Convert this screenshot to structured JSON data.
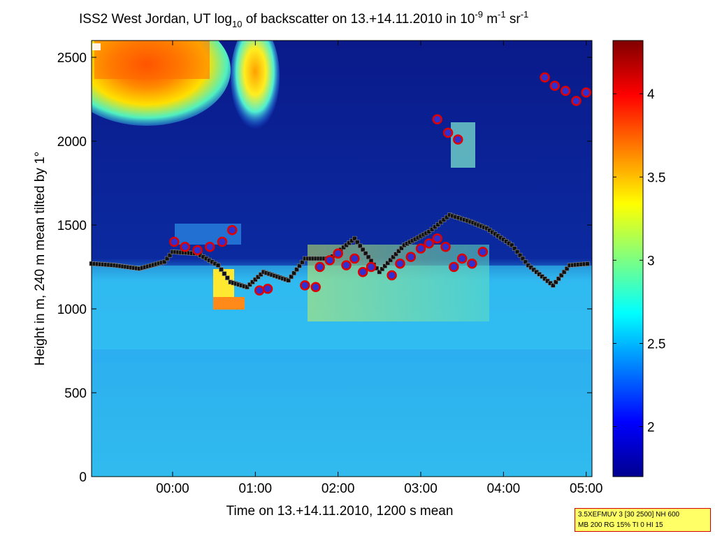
{
  "chart_data": {
    "type": "heatmap",
    "title_parts": {
      "prefix": "ISS2 West Jordan, UT log",
      "sub": "10",
      "middle": " of backscatter on 13.+14.11.2010 in 10",
      "sup1": "-9",
      "unit1": " m",
      "sup2": "-1",
      "unit2": " sr",
      "sup3": "-1"
    },
    "xlabel": "Time on 13.+14.11.2010, 1200 s mean",
    "ylabel": "Height in m, 240 m mean tilted by 1°",
    "x_ticks": [
      "00:00",
      "01:00",
      "02:00",
      "03:00",
      "04:00",
      "05:00"
    ],
    "y_ticks": [
      "0",
      "500",
      "1000",
      "1500",
      "2000",
      "2500"
    ],
    "xlim_hours": [
      -0.98,
      5.07
    ],
    "ylim": [
      0,
      2600
    ],
    "colorbar": {
      "ticks": [
        "2",
        "2.5",
        "3",
        "3.5",
        "4"
      ],
      "range": [
        1.7,
        4.32
      ],
      "colormap": "jet"
    },
    "cloud_base_marks_red": [
      {
        "t": 0.02,
        "h": 1400
      },
      {
        "t": 0.15,
        "h": 1370
      },
      {
        "t": 0.3,
        "h": 1350
      },
      {
        "t": 0.45,
        "h": 1370
      },
      {
        "t": 0.6,
        "h": 1400
      },
      {
        "t": 0.72,
        "h": 1470
      },
      {
        "t": 1.05,
        "h": 1110
      },
      {
        "t": 1.15,
        "h": 1120
      },
      {
        "t": 1.6,
        "h": 1140
      },
      {
        "t": 1.73,
        "h": 1130
      },
      {
        "t": 1.78,
        "h": 1250
      },
      {
        "t": 1.9,
        "h": 1290
      },
      {
        "t": 2.0,
        "h": 1330
      },
      {
        "t": 2.1,
        "h": 1260
      },
      {
        "t": 2.2,
        "h": 1300
      },
      {
        "t": 2.3,
        "h": 1220
      },
      {
        "t": 2.4,
        "h": 1250
      },
      {
        "t": 2.65,
        "h": 1200
      },
      {
        "t": 2.75,
        "h": 1270
      },
      {
        "t": 2.88,
        "h": 1310
      },
      {
        "t": 3.0,
        "h": 1360
      },
      {
        "t": 3.1,
        "h": 1390
      },
      {
        "t": 3.2,
        "h": 1420
      },
      {
        "t": 3.3,
        "h": 1370
      },
      {
        "t": 3.4,
        "h": 1250
      },
      {
        "t": 3.5,
        "h": 1300
      },
      {
        "t": 3.62,
        "h": 1270
      },
      {
        "t": 3.75,
        "h": 1340
      },
      {
        "t": 3.2,
        "h": 2130
      },
      {
        "t": 3.33,
        "h": 2050
      },
      {
        "t": 3.45,
        "h": 2010
      },
      {
        "t": 4.5,
        "h": 2380
      },
      {
        "t": 4.62,
        "h": 2330
      },
      {
        "t": 4.75,
        "h": 2300
      },
      {
        "t": 4.88,
        "h": 2240
      },
      {
        "t": 5.0,
        "h": 2290
      }
    ]
  },
  "info_box": {
    "line1": "3.5XEFMUV 3 [30 2500] NH 600",
    "line2": "MB 200 RG 15% TI 0 HI 15"
  }
}
